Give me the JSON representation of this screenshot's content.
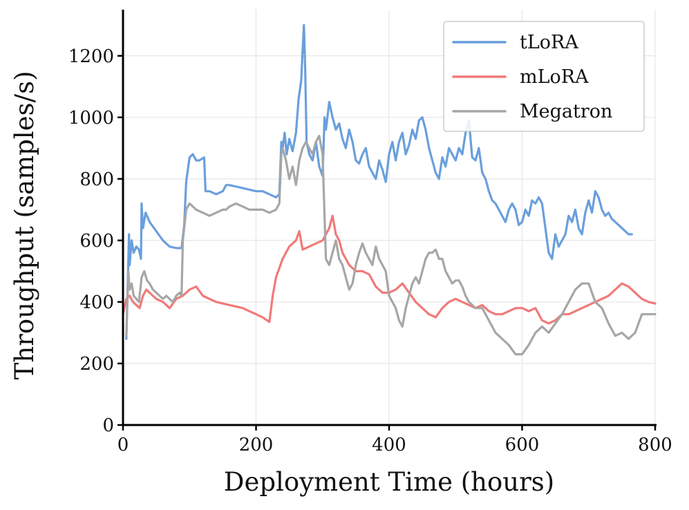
{
  "chart_data": {
    "type": "line",
    "title": "",
    "xlabel": "Deployment Time (hours)",
    "ylabel": "Throughput (samples/s)",
    "xlim": [
      0,
      800
    ],
    "ylim": [
      0,
      1350
    ],
    "xticks": [
      0,
      200,
      400,
      600,
      800
    ],
    "yticks": [
      0,
      200,
      400,
      600,
      800,
      1000,
      1200
    ],
    "grid": true,
    "legend_position": "top-right",
    "series": [
      {
        "name": "tLoRA",
        "color": "#6a9fdc",
        "x": [
          5,
          9,
          10,
          13,
          16,
          20,
          24,
          27,
          28,
          30,
          34,
          40,
          50,
          60,
          70,
          80,
          88,
          92,
          95,
          100,
          105,
          110,
          115,
          122,
          124,
          130,
          140,
          150,
          155,
          160,
          170,
          180,
          190,
          200,
          210,
          220,
          230,
          235,
          238,
          240,
          243,
          246,
          250,
          255,
          260,
          264,
          268,
          270,
          272,
          274,
          276,
          280,
          285,
          290,
          295,
          300,
          303,
          305,
          310,
          315,
          320,
          325,
          330,
          335,
          340,
          345,
          350,
          355,
          360,
          365,
          370,
          375,
          380,
          385,
          390,
          395,
          400,
          405,
          410,
          415,
          420,
          425,
          430,
          435,
          440,
          445,
          450,
          455,
          460,
          465,
          470,
          475,
          480,
          485,
          490,
          495,
          500,
          505,
          510,
          515,
          520,
          525,
          530,
          535,
          540,
          545,
          550,
          555,
          560,
          565,
          570,
          575,
          580,
          585,
          590,
          595,
          600,
          605,
          610,
          615,
          620,
          625,
          630,
          635,
          640,
          645,
          650,
          655,
          660,
          665,
          670,
          675,
          680,
          685,
          690,
          695,
          700,
          705,
          710,
          715,
          720,
          725,
          730,
          735,
          740,
          745,
          750,
          755,
          760,
          765
        ],
        "y": [
          280,
          620,
          520,
          600,
          560,
          580,
          570,
          540,
          720,
          640,
          690,
          660,
          630,
          600,
          580,
          575,
          575,
          650,
          790,
          870,
          880,
          860,
          860,
          870,
          760,
          760,
          750,
          760,
          780,
          780,
          775,
          770,
          765,
          760,
          760,
          750,
          740,
          750,
          920,
          900,
          950,
          880,
          930,
          890,
          950,
          1060,
          1120,
          1220,
          1300,
          1150,
          920,
          880,
          860,
          920,
          840,
          810,
          1000,
          960,
          1050,
          1000,
          960,
          980,
          930,
          900,
          960,
          920,
          860,
          850,
          880,
          900,
          840,
          820,
          800,
          860,
          830,
          790,
          880,
          920,
          860,
          920,
          950,
          880,
          910,
          960,
          930,
          990,
          1000,
          960,
          900,
          860,
          820,
          800,
          870,
          840,
          900,
          880,
          860,
          900,
          880,
          950,
          990,
          870,
          860,
          900,
          820,
          800,
          760,
          730,
          720,
          700,
          680,
          660,
          700,
          720,
          700,
          650,
          660,
          700,
          680,
          730,
          720,
          740,
          720,
          640,
          560,
          540,
          620,
          580,
          600,
          620,
          680,
          660,
          700,
          640,
          620,
          690,
          730,
          690,
          760,
          740,
          700,
          680,
          690,
          670,
          660,
          650,
          640,
          630,
          620,
          620
        ],
        "visible_range_note": "line ends at about x = 765"
      },
      {
        "name": "mLoRA",
        "color": "#f07a78",
        "x": [
          0,
          5,
          10,
          15,
          20,
          25,
          30,
          35,
          40,
          50,
          60,
          70,
          80,
          90,
          100,
          110,
          120,
          130,
          140,
          150,
          160,
          170,
          180,
          190,
          200,
          210,
          220,
          225,
          230,
          240,
          250,
          260,
          265,
          270,
          280,
          290,
          300,
          310,
          315,
          320,
          325,
          330,
          340,
          350,
          360,
          370,
          380,
          390,
          400,
          410,
          420,
          430,
          440,
          450,
          460,
          470,
          480,
          490,
          500,
          510,
          520,
          530,
          540,
          550,
          560,
          570,
          580,
          590,
          600,
          610,
          620,
          630,
          640,
          650,
          660,
          670,
          680,
          690,
          700,
          710,
          720,
          730,
          740,
          750,
          760,
          770,
          780,
          790,
          800
        ],
        "y": [
          360,
          410,
          420,
          400,
          390,
          380,
          420,
          440,
          430,
          410,
          400,
          380,
          410,
          420,
          440,
          450,
          420,
          410,
          400,
          395,
          390,
          385,
          380,
          370,
          360,
          350,
          335,
          420,
          480,
          540,
          580,
          600,
          630,
          570,
          580,
          590,
          600,
          640,
          680,
          620,
          600,
          560,
          520,
          500,
          500,
          490,
          450,
          430,
          430,
          440,
          460,
          430,
          400,
          380,
          360,
          350,
          380,
          400,
          410,
          400,
          390,
          380,
          390,
          370,
          360,
          360,
          370,
          380,
          380,
          370,
          380,
          340,
          330,
          340,
          360,
          360,
          370,
          380,
          390,
          400,
          410,
          420,
          440,
          460,
          450,
          430,
          410,
          400,
          395
        ]
      },
      {
        "name": "Megatron",
        "color": "#a6a6a6",
        "x": [
          5,
          8,
          10,
          13,
          16,
          20,
          24,
          28,
          32,
          36,
          40,
          45,
          50,
          55,
          60,
          65,
          70,
          75,
          80,
          85,
          88,
          90,
          95,
          100,
          105,
          110,
          120,
          130,
          140,
          150,
          155,
          160,
          170,
          180,
          190,
          200,
          210,
          220,
          230,
          235,
          238,
          240,
          245,
          250,
          255,
          260,
          265,
          270,
          275,
          280,
          285,
          290,
          295,
          300,
          305,
          310,
          315,
          320,
          325,
          330,
          335,
          340,
          345,
          350,
          355,
          360,
          365,
          370,
          375,
          380,
          385,
          390,
          395,
          400,
          405,
          410,
          415,
          420,
          425,
          430,
          435,
          440,
          445,
          450,
          455,
          460,
          465,
          470,
          475,
          480,
          485,
          490,
          495,
          500,
          505,
          510,
          515,
          520,
          530,
          540,
          550,
          560,
          570,
          580,
          590,
          600,
          610,
          620,
          630,
          640,
          650,
          660,
          670,
          680,
          690,
          700,
          710,
          720,
          730,
          740,
          750,
          760,
          770,
          780,
          790,
          800
        ],
        "y": [
          290,
          500,
          440,
          460,
          420,
          410,
          400,
          480,
          500,
          470,
          460,
          440,
          430,
          420,
          410,
          420,
          410,
          400,
          420,
          430,
          420,
          600,
          700,
          720,
          710,
          700,
          690,
          680,
          690,
          700,
          700,
          710,
          720,
          710,
          700,
          700,
          700,
          690,
          700,
          720,
          880,
          900,
          860,
          800,
          840,
          780,
          860,
          900,
          920,
          900,
          880,
          920,
          940,
          880,
          540,
          520,
          560,
          600,
          540,
          520,
          480,
          440,
          460,
          520,
          560,
          590,
          560,
          540,
          520,
          580,
          540,
          520,
          500,
          420,
          400,
          380,
          340,
          320,
          380,
          420,
          460,
          480,
          460,
          500,
          540,
          560,
          560,
          570,
          540,
          540,
          500,
          480,
          460,
          470,
          470,
          450,
          420,
          400,
          380,
          380,
          340,
          300,
          280,
          260,
          230,
          230,
          260,
          300,
          320,
          300,
          330,
          360,
          400,
          440,
          460,
          460,
          400,
          380,
          330,
          290,
          300,
          280,
          300,
          360,
          360,
          360
        ]
      }
    ]
  }
}
